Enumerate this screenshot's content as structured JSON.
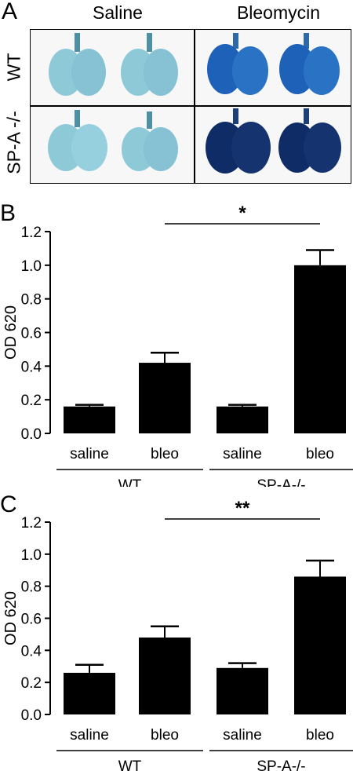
{
  "panel_a": {
    "letter": "A",
    "columns": [
      "Saline",
      "Bleomycin"
    ],
    "rows": [
      "WT",
      "SP-A -/-"
    ],
    "colors": {
      "saline_lung": "#8ec9d8",
      "bleo_wt_lung": "#1d62b8",
      "bleo_spa_lung": "#0f2c66"
    }
  },
  "chart_data": [
    {
      "panel": "B",
      "type": "bar",
      "categories": [
        "saline",
        "bleo",
        "saline",
        "bleo"
      ],
      "groups": [
        "WT",
        "SP-A-/-"
      ],
      "values": [
        0.16,
        0.42,
        0.16,
        1.0
      ],
      "errors": [
        0.01,
        0.06,
        0.01,
        0.09
      ],
      "ylabel": "OD 620",
      "ylim": [
        0,
        1.2
      ],
      "yticks": [
        "0.0",
        "0.2",
        "0.4",
        "0.6",
        "0.8",
        "1.0",
        "1.2"
      ],
      "significance": {
        "label": "*",
        "from": 1,
        "to": 3
      },
      "bar_color": "#000000"
    },
    {
      "panel": "C",
      "type": "bar",
      "categories": [
        "saline",
        "bleo",
        "saline",
        "bleo"
      ],
      "groups": [
        "WT",
        "SP-A-/-"
      ],
      "values": [
        0.26,
        0.48,
        0.29,
        0.86
      ],
      "errors": [
        0.05,
        0.07,
        0.03,
        0.1
      ],
      "ylabel": "OD 620",
      "ylim": [
        0,
        1.2
      ],
      "yticks": [
        "0.0",
        "0.2",
        "0.4",
        "0.6",
        "0.8",
        "1.0",
        "1.2"
      ],
      "significance": {
        "label": "**",
        "from": 1,
        "to": 3
      },
      "bar_color": "#000000"
    }
  ]
}
